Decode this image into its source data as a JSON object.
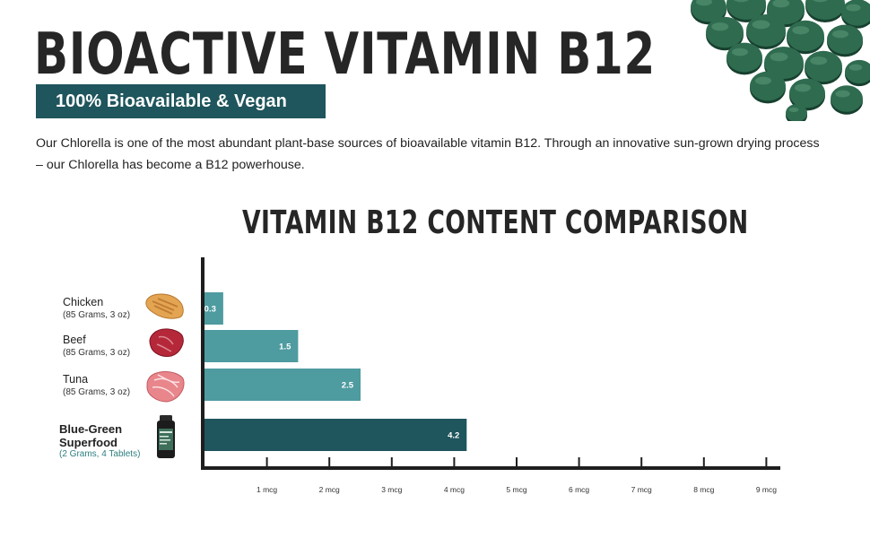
{
  "header": {
    "title": "BIOACTIVE VITAMIN B12",
    "badge": "100% Bioavailable & Vegan",
    "intro": "Our Chlorella is one of the most abundant plant-base sources of bioavailable vitamin B12. Through an innovative sun-grown drying process – our Chlorella has become a B12 powerhouse."
  },
  "categories_info": [
    {
      "name": "Chicken",
      "sub": "(85 Grams, 3 oz)",
      "icon": "chicken-breast-icon"
    },
    {
      "name": "Beef",
      "sub": "(85 Grams, 3 oz)",
      "icon": "beef-steak-icon"
    },
    {
      "name": "Tuna",
      "sub": "(85 Grams, 3 oz)",
      "icon": "tuna-steak-icon"
    },
    {
      "name": "Blue-Green Superfood",
      "name_line1": "Blue-Green",
      "name_line2": "Superfood",
      "sub": "(2 Grams, 4 Tablets)",
      "icon": "supplement-bottle-icon"
    }
  ],
  "colors": {
    "bar_light": "#4e9ba0",
    "bar_dark": "#1f555c",
    "axis": "#1e1e1e",
    "badge_bg": "#1f555c",
    "pill": "#2e6b4f"
  },
  "chart_data": {
    "type": "bar",
    "orientation": "horizontal",
    "title": "VITAMIN B12 CONTENT COMPARISON",
    "categories": [
      "Chicken",
      "Beef",
      "Tuna",
      "Blue-Green Superfood"
    ],
    "values": [
      0.3,
      1.5,
      2.5,
      4.2
    ],
    "value_labels": [
      "0.3",
      "1.5",
      "2.5",
      "4.2"
    ],
    "x_ticks": [
      "1 mcg",
      "2 mcg",
      "3 mcg",
      "4 mcg",
      "5 mcg",
      "6 mcg",
      "7 mcg",
      "8 mcg",
      "9 mcg"
    ],
    "xlim": [
      0,
      9.2
    ],
    "unit": "mcg",
    "grid": false,
    "highlight_index": 3
  }
}
